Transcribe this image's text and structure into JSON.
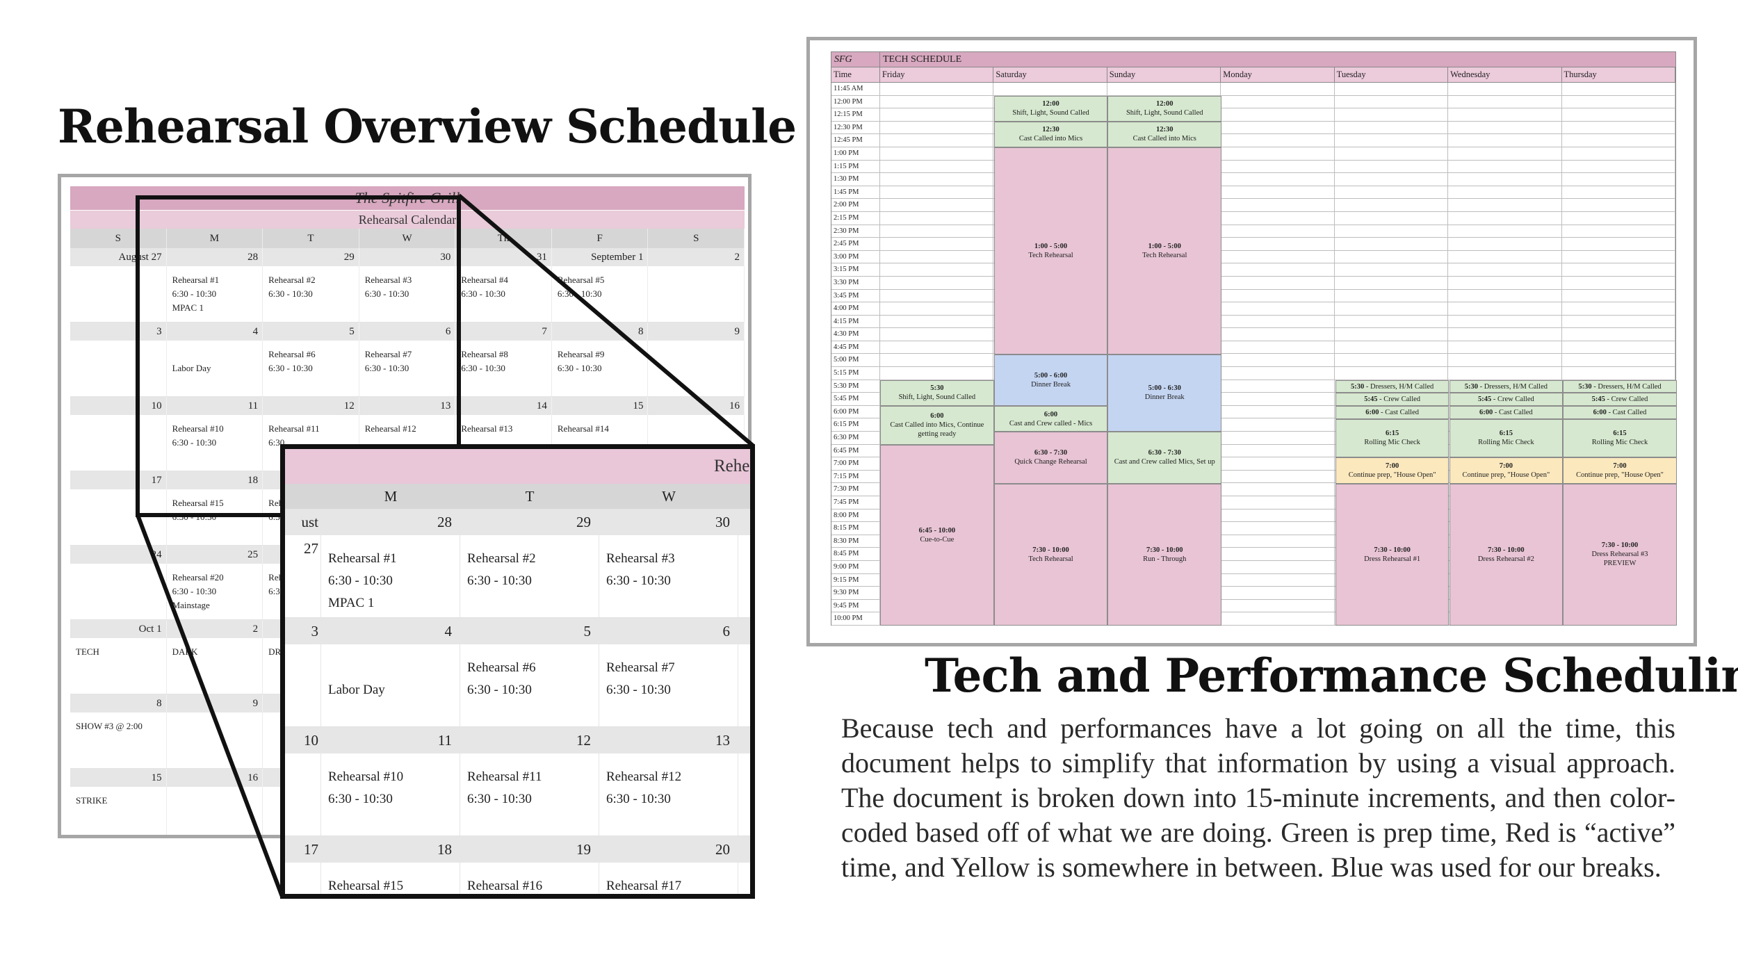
{
  "left_heading": "Rehearsal Overview Schedule",
  "right_heading": "Tech and Performance Scheduling",
  "description": "Because tech and performances have a lot going on all the time, this document helps to simplify that information by using a visual approach. The document is broken down into 15-minute increments, and then color-coded based off of what we are doing. Green is prep time, Red is “active” time, and Yellow is somewhere in between. Blue was used for our breaks.",
  "calendar": {
    "title": "The Spitfire Grill",
    "subtitle": "Rehearsal Calendar",
    "days": [
      "S",
      "M",
      "T",
      "W",
      "Th",
      "F",
      "S"
    ],
    "weeks": [
      {
        "dates": [
          "August 27",
          "28",
          "29",
          "30",
          "31",
          "September 1",
          "2"
        ],
        "cells": [
          "",
          "Rehearsal #1\n6:30 - 10:30\nMPAC 1",
          "Rehearsal #2\n6:30 - 10:30",
          "Rehearsal #3\n6:30 - 10:30",
          "Rehearsal #4\n6:30 - 10:30",
          "Rehearsal #5\n6:30 - 10:30",
          ""
        ]
      },
      {
        "dates": [
          "3",
          "4",
          "5",
          "6",
          "7",
          "8",
          "9"
        ],
        "cells": [
          "",
          "\nLabor Day",
          "Rehearsal #6\n6:30 - 10:30",
          "Rehearsal #7\n6:30 - 10:30",
          "Rehearsal #8\n6:30 - 10:30",
          "Rehearsal #9\n6:30 - 10:30",
          ""
        ]
      },
      {
        "dates": [
          "10",
          "11",
          "12",
          "13",
          "14",
          "15",
          "16"
        ],
        "cells": [
          "",
          "Rehearsal #10\n6:30 - 10:30",
          "Rehearsal #11\n6:30",
          "Rehearsal #12",
          "Rehearsal #13",
          "Rehearsal #14",
          ""
        ]
      },
      {
        "dates": [
          "17",
          "18",
          "",
          "",
          "",
          "",
          ""
        ],
        "cells": [
          "",
          "Rehearsal #15\n6:30 - 10:30",
          "Reh\n6:3",
          "",
          "",
          "",
          ""
        ]
      },
      {
        "dates": [
          "24",
          "25",
          "",
          "",
          "",
          "",
          ""
        ],
        "cells": [
          "",
          "Rehearsal #20\n6:30 - 10:30\nMainstage",
          "Reh\n6:30",
          "",
          "",
          "",
          ""
        ]
      },
      {
        "dates": [
          "Oct 1",
          "2",
          "",
          "",
          "",
          "",
          ""
        ],
        "cells": [
          "TECH",
          "DARK",
          "DRE",
          "",
          "",
          "",
          ""
        ]
      },
      {
        "dates": [
          "8",
          "9",
          "",
          "",
          "",
          "",
          ""
        ],
        "cells": [
          "SHOW #3 @ 2:00",
          "",
          "",
          "",
          "",
          "",
          ""
        ]
      },
      {
        "dates": [
          "15",
          "16",
          "",
          "",
          "",
          "",
          ""
        ],
        "cells": [
          "STRIKE",
          "",
          "",
          "",
          "",
          "",
          ""
        ]
      }
    ]
  },
  "zoom": {
    "title": "Rehearsal Calendar",
    "days": [
      "M",
      "T",
      "W"
    ],
    "weeks": [
      {
        "lead": "ust 27",
        "dates": [
          "28",
          "29",
          "30"
        ],
        "cells": [
          "Rehearsal #1\n6:30 - 10:30\nMPAC 1",
          "Rehearsal #2\n6:30 - 10:30",
          "Rehearsal #3\n6:30 - 10:30"
        ]
      },
      {
        "lead": "3",
        "dates": [
          "4",
          "5",
          "6"
        ],
        "cells": [
          "\nLabor Day",
          "Rehearsal #6\n6:30 - 10:30",
          "Rehearsal #7\n6:30 - 10:30"
        ]
      },
      {
        "lead": "10",
        "dates": [
          "11",
          "12",
          "13"
        ],
        "cells": [
          "Rehearsal #10\n6:30 - 10:30",
          "Rehearsal #11\n6:30 - 10:30",
          "Rehearsal #12\n6:30 - 10:30"
        ]
      },
      {
        "lead": "17",
        "dates": [
          "18",
          "19",
          "20"
        ],
        "cells": [
          "Rehearsal #15",
          "Rehearsal #16",
          "Rehearsal #17"
        ]
      }
    ]
  },
  "tech": {
    "org": "SFG",
    "title": "TECH SCHEDULE",
    "time_label": "Time",
    "days": [
      "Friday",
      "Saturday",
      "Sunday",
      "Monday",
      "Tuesday",
      "Wednesday",
      "Thursday"
    ],
    "times": [
      "11:45 AM",
      "12:00 PM",
      "12:15 PM",
      "12:30 PM",
      "12:45 PM",
      "1:00 PM",
      "1:15 PM",
      "1:30 PM",
      "1:45 PM",
      "2:00 PM",
      "2:15 PM",
      "2:30 PM",
      "2:45 PM",
      "3:00 PM",
      "3:15 PM",
      "3:30 PM",
      "3:45 PM",
      "4:00 PM",
      "4:15 PM",
      "4:30 PM",
      "4:45 PM",
      "5:00 PM",
      "5:15 PM",
      "5:30 PM",
      "5:45 PM",
      "6:00 PM",
      "6:15 PM",
      "6:30 PM",
      "6:45 PM",
      "7:00 PM",
      "7:15 PM",
      "7:30 PM",
      "7:45 PM",
      "8:00 PM",
      "8:15 PM",
      "8:30 PM",
      "8:45 PM",
      "9:00 PM",
      "9:15 PM",
      "9:30 PM",
      "9:45 PM",
      "10:00 PM"
    ],
    "blocks": [
      {
        "day": 1,
        "start": 1,
        "span": 2,
        "color": "green",
        "time": "12:00",
        "label": "Shift, Light, Sound Called"
      },
      {
        "day": 2,
        "start": 1,
        "span": 2,
        "color": "green",
        "time": "12:00",
        "label": "Shift, Light, Sound Called"
      },
      {
        "day": 1,
        "start": 3,
        "span": 2,
        "color": "green",
        "time": "12:30",
        "label": "Cast Called into Mics"
      },
      {
        "day": 2,
        "start": 3,
        "span": 2,
        "color": "green",
        "time": "12:30",
        "label": "Cast Called into Mics"
      },
      {
        "day": 1,
        "start": 5,
        "span": 16,
        "color": "pink",
        "time": "1:00 - 5:00",
        "label": "Tech Rehearsal"
      },
      {
        "day": 2,
        "start": 5,
        "span": 16,
        "color": "pink",
        "time": "1:00 - 5:00",
        "label": "Tech Rehearsal"
      },
      {
        "day": 1,
        "start": 21,
        "span": 4,
        "color": "blue",
        "time": "5:00 - 6:00",
        "label": "Dinner Break"
      },
      {
        "day": 2,
        "start": 21,
        "span": 6,
        "color": "blue",
        "time": "5:00 - 6:30",
        "label": "Dinner Break"
      },
      {
        "day": 0,
        "start": 23,
        "span": 2,
        "color": "green",
        "time": "5:30",
        "label": "Shift, Light, Sound Called"
      },
      {
        "day": 0,
        "start": 25,
        "span": 3,
        "color": "green",
        "time": "6:00",
        "label": "Cast Called into Mics, Continue getting ready"
      },
      {
        "day": 0,
        "start": 28,
        "span": 14,
        "color": "pink",
        "time": "6:45 - 10:00",
        "label": "Cue-to-Cue"
      },
      {
        "day": 1,
        "start": 25,
        "span": 2,
        "color": "green",
        "time": "6:00",
        "label": "Cast and Crew called - Mics"
      },
      {
        "day": 1,
        "start": 27,
        "span": 4,
        "color": "pink",
        "time": "6:30 - 7:30",
        "label": "Quick Change Rehearsal"
      },
      {
        "day": 1,
        "start": 31,
        "span": 11,
        "color": "pink",
        "time": "7:30 - 10:00",
        "label": "Tech Rehearsal"
      },
      {
        "day": 2,
        "start": 27,
        "span": 4,
        "color": "green",
        "time": "6:30 - 7:30",
        "label": "Cast and Crew called Mics, Set up"
      },
      {
        "day": 2,
        "start": 31,
        "span": 11,
        "color": "pink",
        "time": "7:30 - 10:00",
        "label": "Run - Through"
      },
      {
        "day": 4,
        "start": 23,
        "span": 1,
        "color": "green",
        "time": "5:30",
        "label": "- Dressers, H/M Called"
      },
      {
        "day": 5,
        "start": 23,
        "span": 1,
        "color": "green",
        "time": "5:30",
        "label": "- Dressers, H/M Called"
      },
      {
        "day": 6,
        "start": 23,
        "span": 1,
        "color": "green",
        "time": "5:30",
        "label": "- Dressers, H/M Called"
      },
      {
        "day": 4,
        "start": 24,
        "span": 1,
        "color": "green",
        "time": "5:45",
        "label": "- Crew Called"
      },
      {
        "day": 5,
        "start": 24,
        "span": 1,
        "color": "green",
        "time": "5:45",
        "label": "- Crew Called"
      },
      {
        "day": 6,
        "start": 24,
        "span": 1,
        "color": "green",
        "time": "5:45",
        "label": "- Crew Called"
      },
      {
        "day": 4,
        "start": 25,
        "span": 1,
        "color": "green",
        "time": "6:00",
        "label": "- Cast Called"
      },
      {
        "day": 5,
        "start": 25,
        "span": 1,
        "color": "green",
        "time": "6:00",
        "label": "- Cast Called"
      },
      {
        "day": 6,
        "start": 25,
        "span": 1,
        "color": "green",
        "time": "6:00",
        "label": "- Cast Called"
      },
      {
        "day": 4,
        "start": 26,
        "span": 3,
        "color": "green",
        "time": "6:15",
        "label": "Rolling Mic Check"
      },
      {
        "day": 5,
        "start": 26,
        "span": 3,
        "color": "green",
        "time": "6:15",
        "label": "Rolling Mic Check"
      },
      {
        "day": 6,
        "start": 26,
        "span": 3,
        "color": "green",
        "time": "6:15",
        "label": "Rolling Mic Check"
      },
      {
        "day": 4,
        "start": 29,
        "span": 2,
        "color": "yellow",
        "time": "7:00",
        "label": "Continue prep, \"House Open\""
      },
      {
        "day": 5,
        "start": 29,
        "span": 2,
        "color": "yellow",
        "time": "7:00",
        "label": "Continue prep, \"House Open\""
      },
      {
        "day": 6,
        "start": 29,
        "span": 2,
        "color": "yellow",
        "time": "7:00",
        "label": "Continue prep, \"House Open\""
      },
      {
        "day": 4,
        "start": 31,
        "span": 11,
        "color": "pink",
        "time": "7:30 - 10:00",
        "label": "Dress Rehearsal #1"
      },
      {
        "day": 5,
        "start": 31,
        "span": 11,
        "color": "pink",
        "time": "7:30 - 10:00",
        "label": "Dress Rehearsal #2"
      },
      {
        "day": 6,
        "start": 31,
        "span": 11,
        "color": "pink",
        "time": "7:30 - 10:00",
        "label": "Dress Rehearsal #3\nPREVIEW"
      }
    ]
  }
}
